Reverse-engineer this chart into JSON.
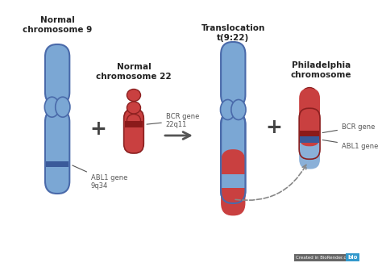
{
  "bg_color": "#ffffff",
  "chr9_blue": "#7ba7d4",
  "chr9_dark_blue": "#3a5a9a",
  "chr9_edge": "#4a6aaa",
  "chr22_red": "#c94040",
  "chr22_dark_red": "#8b1a1a",
  "chr22_edge": "#8b2020",
  "phil_blue": "#8ab0d8",
  "phil_blue_edge": "#4a6aaa",
  "label_color": "#555555",
  "bold_color": "#222222",
  "plus_color": "#444444",
  "arrow_color": "#555555",
  "dashed_color": "#888888",
  "watermark_bg": "#6a6a6a",
  "chr9_label": "Normal\nchromosome 9",
  "chr22_label": "Normal\nchromosome 22",
  "trans_label": "Translocation\nt(9:22)",
  "phil_label": "Philadelphia\nchromosome",
  "abl1_label": "ABL1 gene\n9q34",
  "bcr22_label": "BCR gene\n22q11",
  "bcr_ph_label": "BCR gene",
  "abl1_ph_label": "ABL1 gene"
}
